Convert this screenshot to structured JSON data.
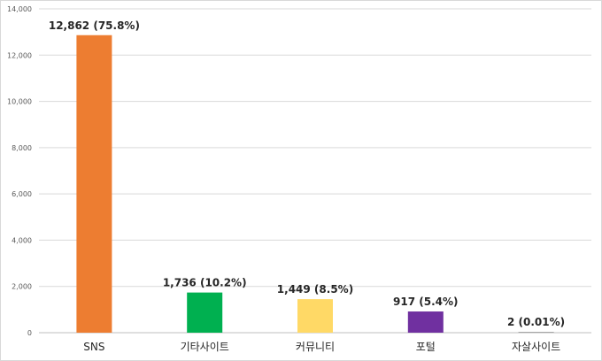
{
  "chart_data": {
    "type": "bar",
    "categories": [
      "SNS",
      "기타사이트",
      "커뮤니티",
      "포털",
      "자살사이트"
    ],
    "values": [
      12862,
      1736,
      1449,
      917,
      2
    ],
    "data_labels": [
      "12,862 (75.8%)",
      "1,736 (10.2%)",
      "1,449 (8.5%)",
      "917 (5.4%)",
      "2 (0.01%)"
    ],
    "colors": [
      "#ED7D31",
      "#00B050",
      "#FFD966",
      "#7030A0",
      "#A5A5A5"
    ],
    "ylim": [
      0,
      14000
    ],
    "yticks": [
      0,
      2000,
      4000,
      6000,
      8000,
      10000,
      12000,
      14000
    ],
    "ytick_labels": [
      "0",
      "2,000",
      "4,000",
      "6,000",
      "8,000",
      "10,000",
      "12,000",
      "14,000"
    ],
    "title": "",
    "xlabel": "",
    "ylabel": "",
    "grid": true,
    "legend": false
  }
}
